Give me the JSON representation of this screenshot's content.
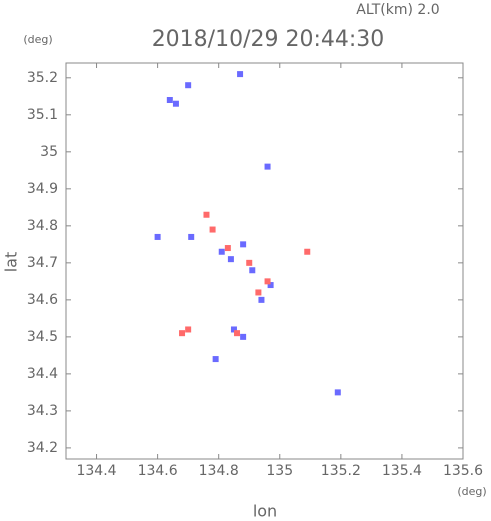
{
  "chart_data": {
    "type": "scatter",
    "title": "2018/10/29 20:44:30",
    "subtitle": "ALT(km) 2.0",
    "x_label": "lon",
    "y_label": "lat",
    "x_unit": "(deg)",
    "y_unit": "(deg)",
    "xlim": [
      134.3,
      135.6
    ],
    "ylim": [
      34.17,
      35.24
    ],
    "xticks": [
      134.4,
      134.6,
      134.8,
      135.0,
      135.2,
      135.4,
      135.6
    ],
    "yticks": [
      34.2,
      34.3,
      34.4,
      34.5,
      34.6,
      34.7,
      34.8,
      34.9,
      35.0,
      35.1,
      35.2
    ],
    "series": [
      {
        "color": "#6a6aff",
        "x": [
          134.66,
          134.7,
          134.87,
          134.96,
          134.6,
          134.71,
          134.81,
          134.88,
          134.91,
          134.94,
          134.85,
          134.88,
          135.19,
          134.79,
          134.64,
          134.84,
          134.97
        ],
        "values": [
          35.13,
          35.18,
          35.21,
          34.96,
          34.77,
          34.77,
          34.73,
          34.75,
          34.68,
          34.6,
          34.52,
          34.5,
          34.35,
          34.44,
          35.14,
          34.71,
          34.64
        ]
      },
      {
        "color": "#ff6a6a",
        "x": [
          134.76,
          134.96,
          134.7,
          135.09,
          134.83,
          134.9,
          134.93,
          134.68,
          134.86,
          134.78
        ],
        "values": [
          34.83,
          34.65,
          34.52,
          34.73,
          34.74,
          34.7,
          34.62,
          34.51,
          34.51,
          34.79
        ]
      }
    ]
  }
}
